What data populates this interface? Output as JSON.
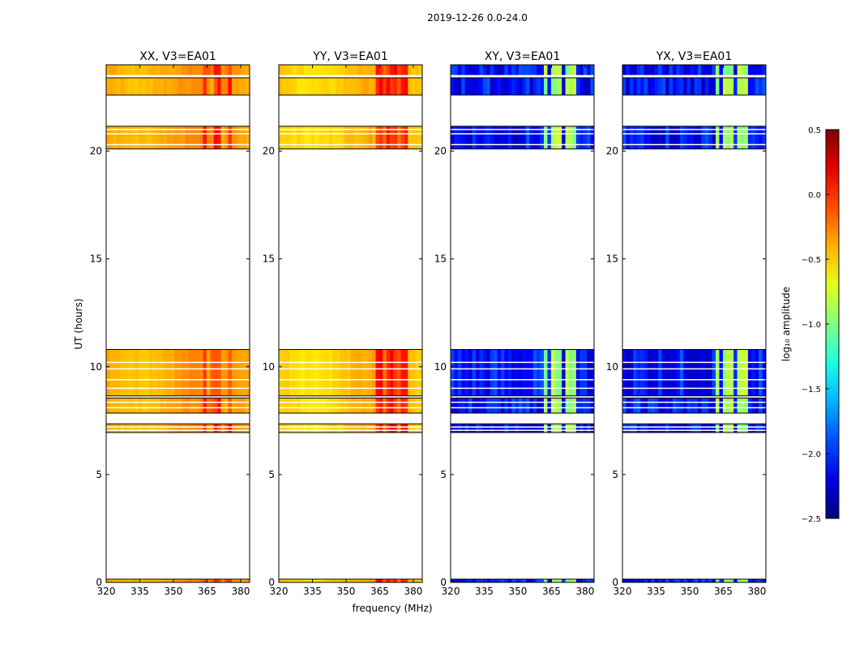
{
  "figure": {
    "suptitle": "2019-12-26 0.0-24.0",
    "ylabel": "UT (hours)",
    "xlabel": "frequency (MHz)"
  },
  "chart_data": {
    "type": "heatmap",
    "x_ticks": [
      320,
      335,
      350,
      365,
      380
    ],
    "x_tick_labels": [
      "320",
      "335",
      "350",
      "365",
      "380"
    ],
    "x_range": [
      320,
      384
    ],
    "y_ticks": [
      0,
      5,
      10,
      15,
      20
    ],
    "y_tick_labels": [
      "0",
      "5",
      "10",
      "15",
      "20"
    ],
    "y_range": [
      0,
      24
    ],
    "time_bands": [
      {
        "from": 0.0,
        "to": 0.15
      },
      {
        "from": 6.95,
        "to": 7.35
      },
      {
        "from": 7.85,
        "to": 8.55
      },
      {
        "from": 8.65,
        "to": 10.8
      },
      {
        "from": 20.1,
        "to": 21.15
      },
      {
        "from": 22.6,
        "to": 23.4
      },
      {
        "from": 23.5,
        "to": 24.0
      }
    ],
    "gap_lines": [
      7.05,
      7.2,
      8.1,
      8.35,
      9.0,
      9.4,
      9.9,
      10.2,
      20.3,
      20.8,
      21.0,
      23.5
    ],
    "panels": [
      {
        "title": "XX, V3=EA01",
        "polarization": "XX",
        "mean_log_amp": -0.35,
        "rfi_range_mhz": [
          363,
          376
        ],
        "rfi_log_amp": 0.0
      },
      {
        "title": "YY, V3=EA01",
        "polarization": "YY",
        "mean_log_amp": -0.45,
        "rfi_range_mhz": [
          364,
          377
        ],
        "rfi_log_amp": 0.05
      },
      {
        "title": "XY, V3=EA01",
        "polarization": "XY",
        "mean_log_amp": -2.1,
        "rfi_range_mhz": [
          361,
          379
        ],
        "rfi_log_amp": -0.9
      },
      {
        "title": "YX, V3=EA01",
        "polarization": "YX",
        "mean_log_amp": -2.1,
        "rfi_range_mhz": [
          361,
          379
        ],
        "rfi_log_amp": -0.9
      }
    ],
    "colorbar": {
      "label": "log₁₀ amplitude",
      "range": [
        -2.5,
        0.5
      ],
      "ticks": [
        0.5,
        0.0,
        -0.5,
        -1.0,
        -1.5,
        -2.0,
        -2.5
      ],
      "tick_labels": [
        "0.5",
        "0.0",
        "−0.5",
        "−1.0",
        "−1.5",
        "−2.0",
        "−2.5"
      ],
      "colormap": "jet"
    }
  }
}
